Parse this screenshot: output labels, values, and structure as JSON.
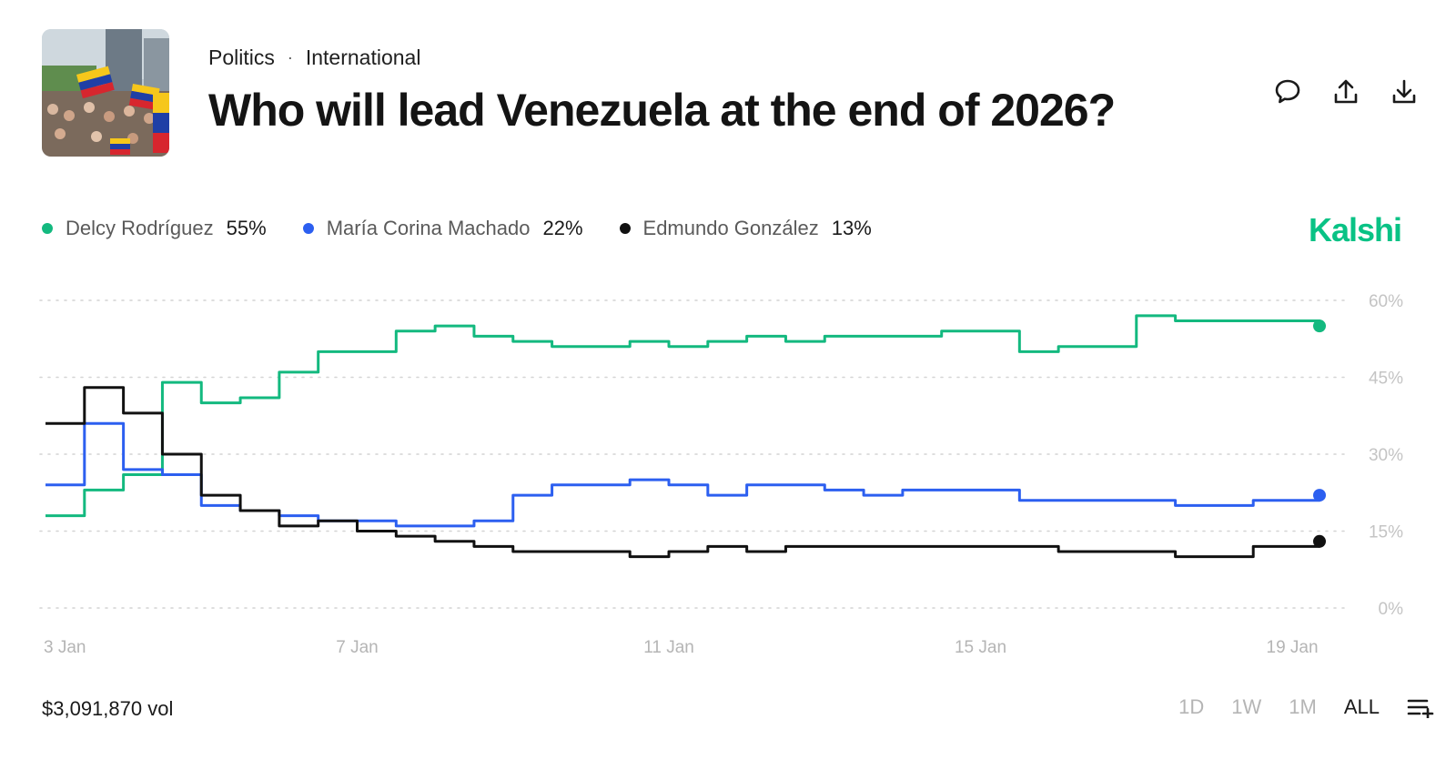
{
  "header": {
    "breadcrumb": [
      "Politics",
      "International"
    ],
    "title": "Who will lead Venezuela at the end of 2026?"
  },
  "actions": [
    {
      "icon": "comment-icon"
    },
    {
      "icon": "share-icon"
    },
    {
      "icon": "download-icon"
    }
  ],
  "brand": {
    "label": "Kalshi",
    "color": "#09c285"
  },
  "legend": [
    {
      "name": "Delcy Rodríguez",
      "pct": "55%",
      "color": "#13b97f"
    },
    {
      "name": "María Corina Machado",
      "pct": "22%",
      "color": "#2c5ff0"
    },
    {
      "name": "Edmundo González",
      "pct": "13%",
      "color": "#111111"
    }
  ],
  "footer": {
    "volume": "$3,091,870 vol",
    "ranges": [
      "1D",
      "1W",
      "1M",
      "ALL"
    ],
    "active_range": "ALL"
  },
  "chart_data": {
    "type": "line",
    "x_ticks": [
      "3 Jan",
      "7 Jan",
      "11 Jan",
      "15 Jan",
      "19 Jan"
    ],
    "y_ticks": [
      "60%",
      "45%",
      "30%",
      "15%",
      "0%"
    ],
    "ylim": [
      0,
      60
    ],
    "xlim": [
      "3 Jan",
      "19 Jan 2026 (+0.4 day)"
    ],
    "grid": "horizontal-dotted",
    "y_axis_side": "right",
    "x": [
      "3 Jan",
      "3.5 Jan",
      "4 Jan",
      "4.5 Jan",
      "5 Jan",
      "5.5 Jan",
      "6 Jan",
      "6.5 Jan",
      "7 Jan",
      "7.5 Jan",
      "8 Jan",
      "8.5 Jan",
      "9 Jan",
      "9.5 Jan",
      "10 Jan",
      "10.5 Jan",
      "11 Jan",
      "11.5 Jan",
      "12 Jan",
      "12.5 Jan",
      "13 Jan",
      "13.5 Jan",
      "14 Jan",
      "14.5 Jan",
      "15 Jan",
      "15.5 Jan",
      "16 Jan",
      "16.5 Jan",
      "17 Jan",
      "17.5 Jan",
      "18 Jan",
      "18.5 Jan",
      "19 Jan",
      "19.35 Jan"
    ],
    "series": [
      {
        "name": "Delcy Rodríguez",
        "color": "#13b97f",
        "values": [
          18,
          23,
          26,
          44,
          40,
          41,
          46,
          50,
          50,
          54,
          55,
          53,
          52,
          51,
          51,
          52,
          51,
          52,
          53,
          52,
          53,
          53,
          53,
          54,
          54,
          50,
          51,
          51,
          57,
          56,
          56,
          56,
          56,
          55
        ]
      },
      {
        "name": "María Corina Machado",
        "color": "#2c5ff0",
        "values": [
          24,
          36,
          27,
          26,
          20,
          19,
          18,
          17,
          17,
          16,
          16,
          17,
          22,
          24,
          24,
          25,
          24,
          22,
          24,
          24,
          23,
          22,
          23,
          23,
          23,
          21,
          21,
          21,
          21,
          20,
          20,
          21,
          21,
          22
        ]
      },
      {
        "name": "Edmundo González",
        "color": "#111111",
        "values": [
          36,
          43,
          38,
          30,
          22,
          19,
          16,
          17,
          15,
          14,
          13,
          12,
          11,
          11,
          11,
          10,
          11,
          12,
          11,
          12,
          12,
          12,
          12,
          12,
          12,
          12,
          11,
          11,
          11,
          10,
          10,
          12,
          12,
          13
        ]
      }
    ]
  }
}
